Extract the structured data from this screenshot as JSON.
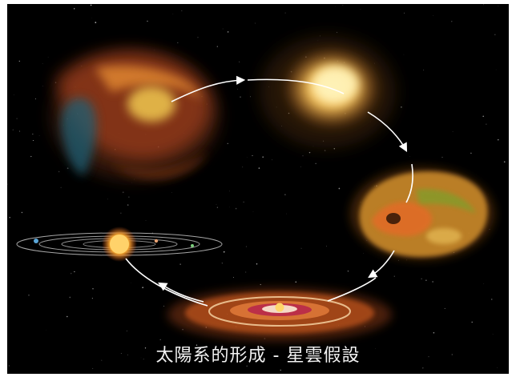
{
  "caption": "太陽系的形成 - 星雲假設",
  "stages": [
    {
      "name": "stage-1-nebula-cloud"
    },
    {
      "name": "stage-2-collapsing-core"
    },
    {
      "name": "stage-3-turbulent-protostar"
    },
    {
      "name": "stage-4-protoplanetary-disk"
    },
    {
      "name": "stage-5-solar-system"
    }
  ],
  "colors": {
    "background": "#000000",
    "arrow": "#ffffff",
    "caption": "#f2f2f2"
  }
}
